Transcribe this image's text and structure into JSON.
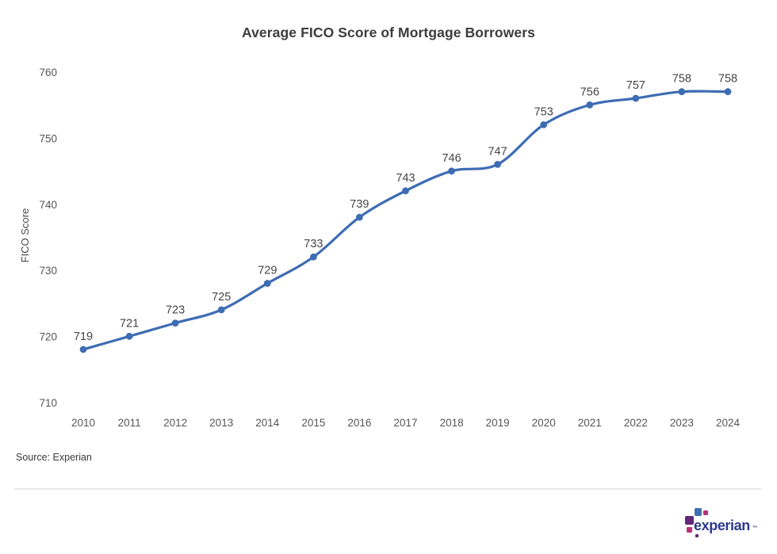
{
  "chart_data": {
    "type": "line",
    "title": "Average FICO Score of Mortgage Borrowers",
    "xlabel": "",
    "ylabel": "FICO Score",
    "categories": [
      "2010",
      "2011",
      "2012",
      "2013",
      "2014",
      "2015",
      "2016",
      "2017",
      "2018",
      "2019",
      "2020",
      "2021",
      "2022",
      "2023",
      "2024"
    ],
    "series": [
      {
        "name": "Average FICO Score",
        "values": [
          719,
          721,
          723,
          725,
          729,
          733,
          739,
          743,
          746,
          747,
          753,
          756,
          757,
          758,
          758
        ]
      }
    ],
    "ylim": [
      710,
      760
    ],
    "yticks": [
      710,
      720,
      730,
      740,
      750,
      760
    ],
    "grid": false,
    "legend": "none",
    "data_labels": true,
    "line_color": "#3E6CB3",
    "point_color": "#3E6CB3",
    "data_label_color": "#454545",
    "axis_text_color": "#565656",
    "smooth": true
  },
  "footer": {
    "source_note": "Source: Experian",
    "logo": {
      "text": "experian",
      "trademark": "™",
      "text_color": "#2D3A8F",
      "square_colors": {
        "blue": "#406EB3",
        "magenta": "#BA2F7D",
        "purple": "#632678"
      }
    }
  }
}
